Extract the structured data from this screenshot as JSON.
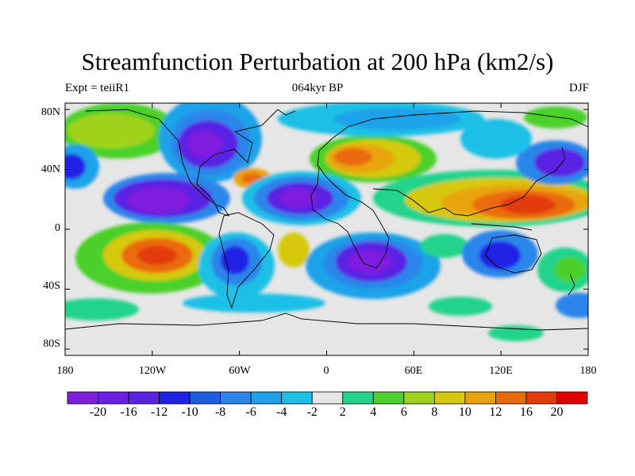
{
  "title": "Streamfunction Perturbation at 200 hPa (km2/s)",
  "subtitle_left": "Expt = teiiR1",
  "subtitle_center": "064kyr BP",
  "subtitle_right": "DJF",
  "lat_labels": [
    "80N",
    "40N",
    "0",
    "40S",
    "80S"
  ],
  "lon_labels": [
    "180",
    "120W",
    "60W",
    "0",
    "60E",
    "120E",
    "180"
  ],
  "colorbar": {
    "colors": [
      "#7f1fe0",
      "#6a1ee6",
      "#5a22e4",
      "#2020e6",
      "#1c5ee6",
      "#2a86ea",
      "#1ea2e8",
      "#1cc0e6",
      "#e6e6e6",
      "#21d38b",
      "#4bd02c",
      "#a0d21a",
      "#d6c80e",
      "#e8a40a",
      "#ea6a08",
      "#e43a08",
      "#e00000"
    ],
    "labels": [
      "-20",
      "-16",
      "-12",
      "-10",
      "-8",
      "-6",
      "-4",
      "-2",
      "2",
      "4",
      "6",
      "8",
      "10",
      "12",
      "16",
      "20"
    ]
  },
  "legend": {
    "ocean_fill": "#e6e6e6",
    "coastline": "#000000"
  }
}
